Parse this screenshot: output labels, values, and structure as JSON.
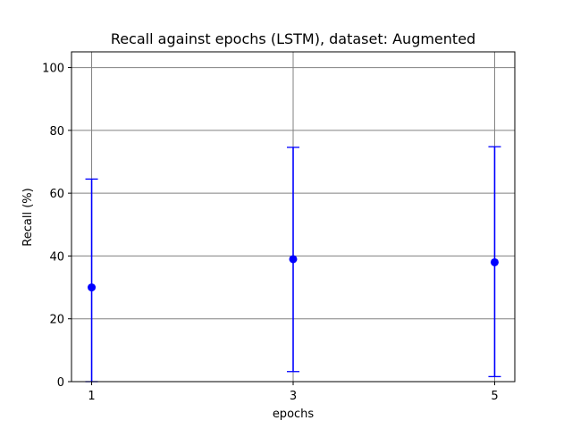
{
  "chart_data": {
    "type": "scatter",
    "title": "Recall against epochs (LSTM), dataset: Augmented",
    "xlabel": "epochs",
    "ylabel": "Recall (%)",
    "xticks": [
      1,
      3,
      5
    ],
    "xlim": [
      0.8,
      5.2
    ],
    "ylim": [
      0,
      105
    ],
    "yticks": [
      0,
      20,
      40,
      60,
      80,
      100
    ],
    "grid": true,
    "legend": "none",
    "color": "#0000ff",
    "series": [
      {
        "points": [
          {
            "x": 1,
            "y": 30,
            "err_low": 0,
            "err_high": 64.5
          },
          {
            "x": 3,
            "y": 39,
            "err_low": 3.2,
            "err_high": 74.6
          },
          {
            "x": 5,
            "y": 38,
            "err_low": 1.6,
            "err_high": 74.8
          }
        ]
      }
    ]
  }
}
